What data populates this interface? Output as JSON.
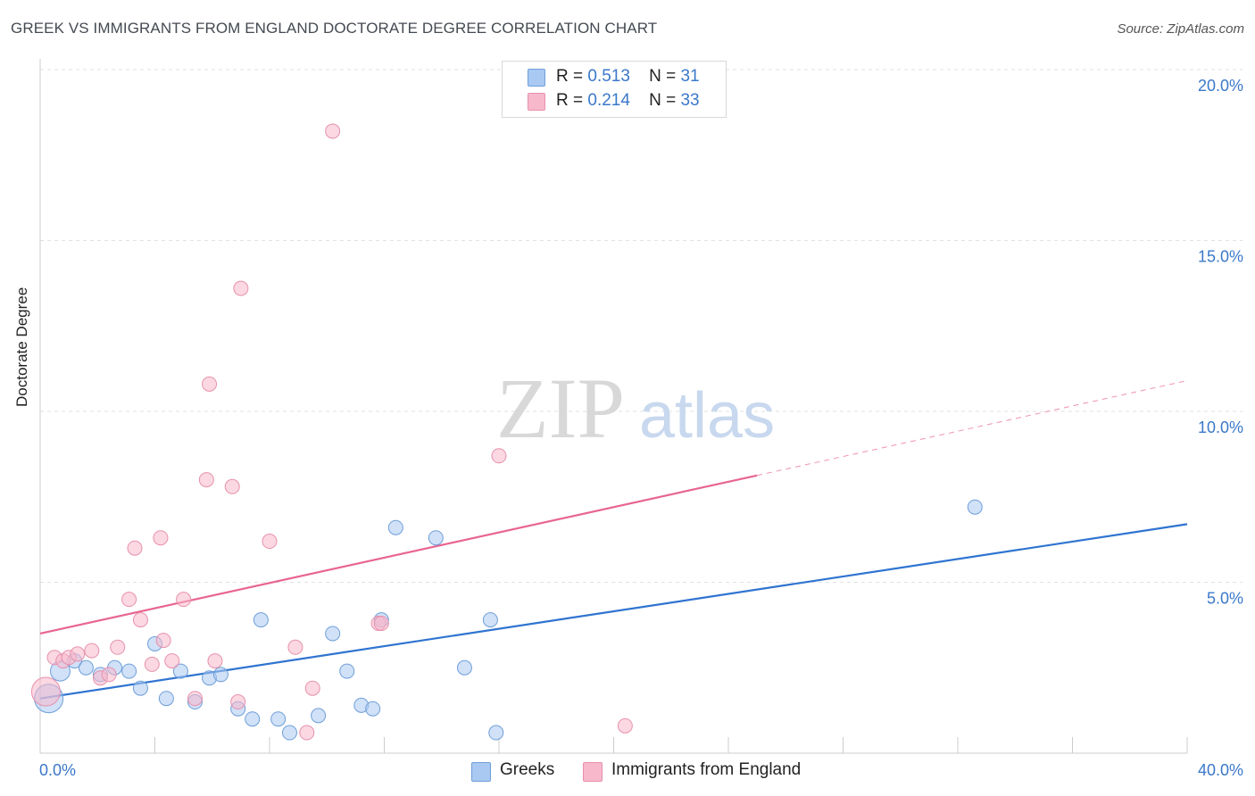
{
  "header": {
    "title": "GREEK VS IMMIGRANTS FROM ENGLAND DOCTORATE DEGREE CORRELATION CHART",
    "source": "Source: ZipAtlas.com"
  },
  "watermark": {
    "zip": "ZIP",
    "atlas": "atlas"
  },
  "legend": {
    "rows": [
      {
        "r_label": "R =",
        "r_value": "0.513",
        "n_label": "N =",
        "n_value": "31",
        "color": "#a9c9f2"
      },
      {
        "r_label": "R =",
        "r_value": "0.214",
        "n_label": "N =",
        "n_value": "33",
        "color": "#f7b8cb"
      }
    ]
  },
  "bottom_legend": [
    {
      "label": "Greeks",
      "color": "#a9c9f2"
    },
    {
      "label": "Immigrants from England",
      "color": "#f7b8cb"
    }
  ],
  "chart_data": {
    "type": "scatter",
    "title": "GREEK VS IMMIGRANTS FROM ENGLAND DOCTORATE DEGREE CORRELATION CHART",
    "xlabel": "",
    "ylabel": "Doctorate Degree",
    "xlim": [
      0,
      40
    ],
    "ylim": [
      0,
      21
    ],
    "x_tick_labels": [
      "0.0%",
      "40.0%"
    ],
    "y_ticks": [
      5,
      10,
      15,
      20
    ],
    "y_tick_labels": [
      "5.0%",
      "10.0%",
      "15.0%",
      "20.0%"
    ],
    "grid": true,
    "legend_position": "top-center",
    "series": [
      {
        "name": "Greeks",
        "color": "#a9c9f2",
        "stroke": "#6f9fd8",
        "trend_color": "#2f74d0",
        "trend": {
          "x0": 0,
          "y0": 1.6,
          "x1": 40,
          "y1": 6.7,
          "x_end_solid": 40
        },
        "points": [
          {
            "x": 0.3,
            "y": 1.6,
            "s": 3
          },
          {
            "x": 0.7,
            "y": 2.4,
            "s": 2
          },
          {
            "x": 1.2,
            "y": 2.7,
            "s": 1
          },
          {
            "x": 1.6,
            "y": 2.5,
            "s": 1
          },
          {
            "x": 2.1,
            "y": 2.3,
            "s": 1
          },
          {
            "x": 2.6,
            "y": 2.5,
            "s": 1
          },
          {
            "x": 3.1,
            "y": 2.4,
            "s": 1
          },
          {
            "x": 3.5,
            "y": 1.9,
            "s": 1
          },
          {
            "x": 4.0,
            "y": 3.2,
            "s": 1
          },
          {
            "x": 4.4,
            "y": 1.6,
            "s": 1
          },
          {
            "x": 4.9,
            "y": 2.4,
            "s": 1
          },
          {
            "x": 5.4,
            "y": 1.5,
            "s": 1
          },
          {
            "x": 5.9,
            "y": 2.2,
            "s": 1
          },
          {
            "x": 6.3,
            "y": 2.3,
            "s": 1
          },
          {
            "x": 6.9,
            "y": 1.3,
            "s": 1
          },
          {
            "x": 7.4,
            "y": 1.0,
            "s": 1
          },
          {
            "x": 7.7,
            "y": 3.9,
            "s": 1
          },
          {
            "x": 8.3,
            "y": 1.0,
            "s": 1
          },
          {
            "x": 8.7,
            "y": 0.6,
            "s": 1
          },
          {
            "x": 9.7,
            "y": 1.1,
            "s": 1
          },
          {
            "x": 10.2,
            "y": 3.5,
            "s": 1
          },
          {
            "x": 10.7,
            "y": 2.4,
            "s": 1
          },
          {
            "x": 11.2,
            "y": 1.4,
            "s": 1
          },
          {
            "x": 11.6,
            "y": 1.3,
            "s": 1
          },
          {
            "x": 11.9,
            "y": 3.9,
            "s": 1
          },
          {
            "x": 12.4,
            "y": 6.6,
            "s": 1
          },
          {
            "x": 13.8,
            "y": 6.3,
            "s": 1
          },
          {
            "x": 14.8,
            "y": 2.5,
            "s": 1
          },
          {
            "x": 15.7,
            "y": 3.9,
            "s": 1
          },
          {
            "x": 15.9,
            "y": 0.6,
            "s": 1
          },
          {
            "x": 32.6,
            "y": 7.2,
            "s": 1
          }
        ]
      },
      {
        "name": "Immigrants from England",
        "color": "#f7b8cb",
        "stroke": "#e791ad",
        "trend_color": "#e8658f",
        "trend": {
          "x0": 0,
          "y0": 3.5,
          "x1": 40,
          "y1": 10.9,
          "x_end_solid": 25
        },
        "points": [
          {
            "x": 0.2,
            "y": 1.8,
            "s": 3
          },
          {
            "x": 0.5,
            "y": 2.8,
            "s": 1
          },
          {
            "x": 0.8,
            "y": 2.7,
            "s": 1
          },
          {
            "x": 1.0,
            "y": 2.8,
            "s": 1
          },
          {
            "x": 1.3,
            "y": 2.9,
            "s": 1
          },
          {
            "x": 1.8,
            "y": 3.0,
            "s": 1
          },
          {
            "x": 2.1,
            "y": 2.2,
            "s": 1
          },
          {
            "x": 2.4,
            "y": 2.3,
            "s": 1
          },
          {
            "x": 2.7,
            "y": 3.1,
            "s": 1
          },
          {
            "x": 3.1,
            "y": 4.5,
            "s": 1
          },
          {
            "x": 3.3,
            "y": 6.0,
            "s": 1
          },
          {
            "x": 3.5,
            "y": 3.9,
            "s": 1
          },
          {
            "x": 3.9,
            "y": 2.6,
            "s": 1
          },
          {
            "x": 4.2,
            "y": 6.3,
            "s": 1
          },
          {
            "x": 4.3,
            "y": 3.3,
            "s": 1
          },
          {
            "x": 4.6,
            "y": 2.7,
            "s": 1
          },
          {
            "x": 5.0,
            "y": 4.5,
            "s": 1
          },
          {
            "x": 5.4,
            "y": 1.6,
            "s": 1
          },
          {
            "x": 5.8,
            "y": 8.0,
            "s": 1
          },
          {
            "x": 5.9,
            "y": 10.8,
            "s": 1
          },
          {
            "x": 6.1,
            "y": 2.7,
            "s": 1
          },
          {
            "x": 6.7,
            "y": 7.8,
            "s": 1
          },
          {
            "x": 6.9,
            "y": 1.5,
            "s": 1
          },
          {
            "x": 7.0,
            "y": 13.6,
            "s": 1
          },
          {
            "x": 8.0,
            "y": 6.2,
            "s": 1
          },
          {
            "x": 8.9,
            "y": 3.1,
            "s": 1
          },
          {
            "x": 9.3,
            "y": 0.6,
            "s": 1
          },
          {
            "x": 9.5,
            "y": 1.9,
            "s": 1
          },
          {
            "x": 10.2,
            "y": 18.2,
            "s": 1
          },
          {
            "x": 11.8,
            "y": 3.8,
            "s": 1
          },
          {
            "x": 11.9,
            "y": 3.8,
            "s": 1
          },
          {
            "x": 16.0,
            "y": 8.7,
            "s": 1
          },
          {
            "x": 20.4,
            "y": 0.8,
            "s": 1
          }
        ]
      }
    ]
  }
}
